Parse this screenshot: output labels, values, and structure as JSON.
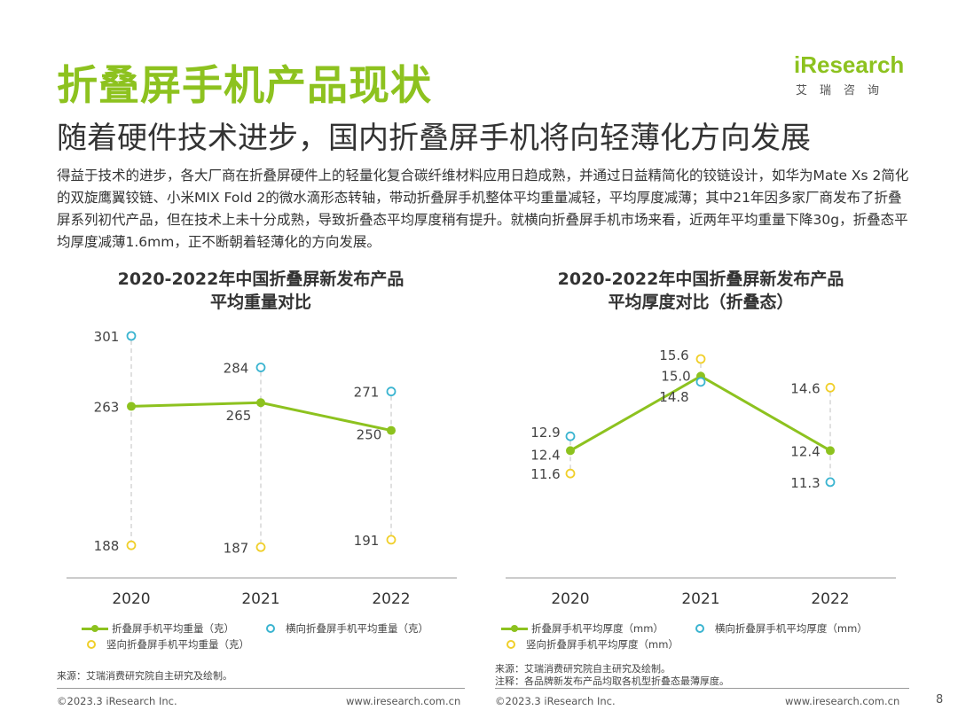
{
  "header": {
    "title": "折叠屏手机产品现状",
    "subtitle": "随着硬件技术进步，国内折叠屏手机将向轻薄化方向发展",
    "paragraph": "得益于技术的进步，各大厂商在折叠屏硬件上的轻量化复合碳纤维材料应用日趋成熟，并通过日益精简化的铰链设计，如华为Mate Xs 2简化的双旋鹰翼铰链、小米MIX Fold 2的微水滴形态转轴，带动折叠屏手机整体平均重量减轻，平均厚度减薄；其中21年因多家厂商发布了折叠屏系列初代产品，但在技术上未十分成熟，导致折叠态平均厚度稍有提升。就横向折叠屏手机市场来看，近两年平均重量下降30g，折叠态平均厚度减薄1.6mm，正不断朝着轻薄化的方向发展。"
  },
  "logo": {
    "text": "iResearch",
    "cn": "艾瑞咨询"
  },
  "colors": {
    "main": "#8dc21f",
    "horizontal": "#3ab4d0",
    "vertical": "#f0cf2a",
    "grid": "#cccccc"
  },
  "chart_data": [
    {
      "type": "line",
      "title_line1": "2020-2022年中国折叠屏新发布产品",
      "title_line2": "平均重量对比",
      "categories": [
        "2020",
        "2021",
        "2022"
      ],
      "series": [
        {
          "name": "折叠屏手机平均重量（克）",
          "style": "line",
          "values": [
            263,
            265,
            250
          ]
        },
        {
          "name": "横向折叠屏手机平均重量（克）",
          "style": "circle",
          "values": [
            301,
            284,
            271
          ]
        },
        {
          "name": "竖向折叠屏手机平均重量（克）",
          "style": "circle",
          "values": [
            188,
            187,
            191
          ]
        }
      ],
      "labels": {
        "main": [
          "263",
          "265",
          "250"
        ],
        "horizontal": [
          "301",
          "284",
          "271"
        ],
        "vertical": [
          "188",
          "187",
          "191"
        ]
      },
      "source": "来源：艾瑞消费研究院自主研究及绘制。"
    },
    {
      "type": "line",
      "title_line1": "2020-2022年中国折叠屏新发布产品",
      "title_line2": "平均厚度对比（折叠态）",
      "categories": [
        "2020",
        "2021",
        "2022"
      ],
      "series": [
        {
          "name": "折叠屏手机平均厚度（mm）",
          "style": "line",
          "values": [
            12.4,
            15.0,
            12.4
          ]
        },
        {
          "name": "横向折叠屏手机平均厚度（mm）",
          "style": "circle",
          "values": [
            12.9,
            14.8,
            11.3
          ]
        },
        {
          "name": "竖向折叠屏手机平均厚度（mm）",
          "style": "circle",
          "values": [
            11.6,
            15.6,
            14.6
          ]
        }
      ],
      "labels": {
        "main": [
          "12.4",
          "15.0",
          "12.4"
        ],
        "horizontal": [
          "12.9",
          "14.8",
          "11.3"
        ],
        "vertical": [
          "11.6",
          "15.6",
          "14.6"
        ]
      },
      "source": "来源：艾瑞消费研究院自主研究及绘制。",
      "note": "注释：各品牌新发布产品均取各机型折叠态最薄厚度。"
    }
  ],
  "footer": {
    "copyright": "©2023.3 iResearch Inc.",
    "url": "www.iresearch.com.cn",
    "page": "8"
  }
}
